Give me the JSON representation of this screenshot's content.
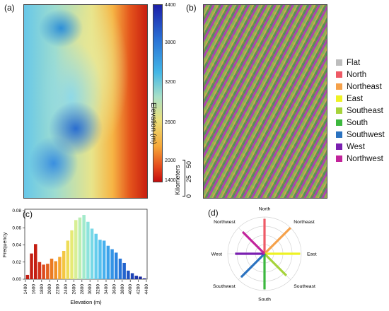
{
  "panels": {
    "a": "(a)",
    "b": "(b)",
    "c": "(c)",
    "d": "(d)"
  },
  "colorbar": {
    "title": "Elevation (m)",
    "ticks": [
      "4400",
      "3800",
      "3200",
      "2600",
      "2000",
      "1400"
    ]
  },
  "scalebar": {
    "ticks": [
      "0",
      "25",
      "50"
    ],
    "unit": "Kilometers"
  },
  "legend": {
    "items": [
      {
        "label": "Flat",
        "color": "#bdbdbd"
      },
      {
        "label": "North",
        "color": "#ee5a66"
      },
      {
        "label": "Northeast",
        "color": "#f5a14a"
      },
      {
        "label": "East",
        "color": "#eef224"
      },
      {
        "label": "Southeast",
        "color": "#a6d33a"
      },
      {
        "label": "South",
        "color": "#3cb83e"
      },
      {
        "label": "Southwest",
        "color": "#2a72c0"
      },
      {
        "label": "West",
        "color": "#7a1fb0"
      },
      {
        "label": "Northwest",
        "color": "#c2239b"
      }
    ]
  },
  "chart_data": [
    {
      "type": "bar",
      "xlabel": "Elevation (m)",
      "ylabel": "Frequency",
      "xlim": [
        1400,
        4400
      ],
      "ylim": [
        0,
        0.08
      ],
      "xticks": [
        "1400",
        "1600",
        "1800",
        "2000",
        "2200",
        "2400",
        "2600",
        "2800",
        "3000",
        "3200",
        "3400",
        "3600",
        "3800",
        "4000",
        "4200",
        "4400"
      ],
      "yticks": [
        "0.00",
        "0.02",
        "0.04",
        "0.06",
        "0.08"
      ],
      "bin_width": 100,
      "bins": [
        1400,
        1500,
        1600,
        1700,
        1800,
        1900,
        2000,
        2100,
        2200,
        2300,
        2400,
        2500,
        2600,
        2700,
        2800,
        2900,
        3000,
        3100,
        3200,
        3300,
        3400,
        3500,
        3600,
        3700,
        3800,
        3900,
        4000,
        4100,
        4200,
        4300
      ],
      "values": [
        0.005,
        0.03,
        0.041,
        0.02,
        0.017,
        0.018,
        0.024,
        0.021,
        0.026,
        0.033,
        0.045,
        0.057,
        0.069,
        0.072,
        0.075,
        0.067,
        0.059,
        0.053,
        0.046,
        0.045,
        0.039,
        0.035,
        0.031,
        0.024,
        0.019,
        0.01,
        0.007,
        0.004,
        0.003,
        0.001
      ],
      "colors": [
        "#c41e12",
        "#c41e12",
        "#c41e12",
        "#d2321a",
        "#dc4a1f",
        "#e3601f",
        "#ea7a23",
        "#f09028",
        "#f5a933",
        "#f4c641",
        "#eedd58",
        "#e6ea76",
        "#d8ef95",
        "#bceeb2",
        "#a2eacb",
        "#8ce3dc",
        "#78d9e6",
        "#64cdec",
        "#54bfee",
        "#46b0ee",
        "#3ca2ea",
        "#3494e6",
        "#2c84e0",
        "#2674d8",
        "#2264ce",
        "#1f53c2",
        "#1d44b6",
        "#1c36aa",
        "#1b2a9e",
        "#1a2094"
      ]
    },
    {
      "type": "radar",
      "categories": [
        "North",
        "Northeast",
        "East",
        "Southeast",
        "South",
        "Southwest",
        "West",
        "Northwest"
      ],
      "values": [
        0.95,
        1.0,
        0.97,
        0.84,
        0.97,
        0.9,
        0.8,
        0.84
      ],
      "colors": [
        "#ee5a66",
        "#f5a14a",
        "#eef224",
        "#a6d33a",
        "#3cb83e",
        "#2a72c0",
        "#7a1fb0",
        "#c2239b"
      ]
    }
  ]
}
